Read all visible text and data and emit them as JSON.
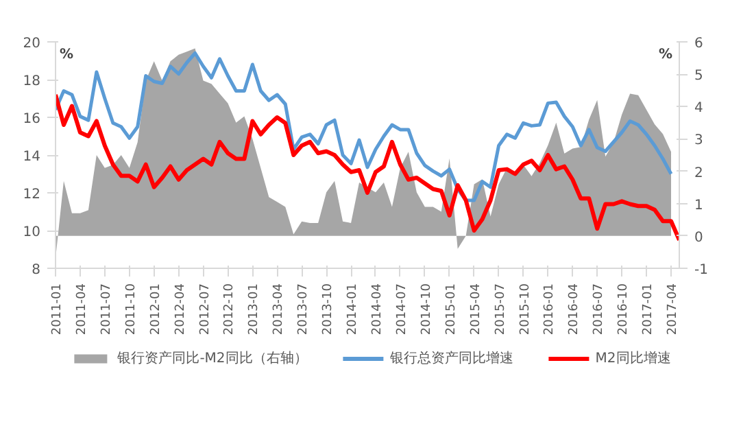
{
  "chart_data": {
    "type": "line",
    "x": [
      "2011-01",
      "2011-02",
      "2011-03",
      "2011-04",
      "2011-05",
      "2011-06",
      "2011-07",
      "2011-08",
      "2011-09",
      "2011-10",
      "2011-11",
      "2011-12",
      "2012-01",
      "2012-02",
      "2012-03",
      "2012-04",
      "2012-05",
      "2012-06",
      "2012-07",
      "2012-08",
      "2012-09",
      "2012-10",
      "2012-11",
      "2012-12",
      "2013-01",
      "2013-02",
      "2013-03",
      "2013-04",
      "2013-05",
      "2013-06",
      "2013-07",
      "2013-08",
      "2013-09",
      "2013-10",
      "2013-11",
      "2013-12",
      "2014-01",
      "2014-02",
      "2014-03",
      "2014-04",
      "2014-05",
      "2014-06",
      "2014-07",
      "2014-08",
      "2014-09",
      "2014-10",
      "2014-11",
      "2014-12",
      "2015-01",
      "2015-02",
      "2015-03",
      "2015-04",
      "2015-05",
      "2015-06",
      "2015-07",
      "2015-08",
      "2015-09",
      "2015-10",
      "2015-11",
      "2015-12",
      "2016-01",
      "2016-02",
      "2016-03",
      "2016-04",
      "2016-05",
      "2016-06",
      "2016-07",
      "2016-08",
      "2016-09",
      "2016-10",
      "2016-11",
      "2016-12",
      "2017-01",
      "2017-02",
      "2017-03",
      "2017-04",
      "2017-05"
    ],
    "series": [
      {
        "name": "银行资产同比-M2同比（右轴）",
        "type": "area",
        "axis": "y2",
        "color": "#a6a6a6",
        "values": [
          -0.7,
          1.7,
          0.7,
          0.7,
          0.8,
          2.5,
          2.1,
          2.2,
          2.5,
          2.1,
          2.9,
          4.8,
          5.4,
          4.8,
          5.4,
          5.6,
          5.7,
          5.8,
          4.8,
          4.7,
          4.4,
          4.1,
          3.5,
          3.7,
          3.0,
          2.1,
          1.2,
          1.05,
          0.9,
          0.05,
          0.45,
          0.4,
          0.4,
          1.35,
          1.7,
          0.45,
          0.4,
          1.65,
          1.5,
          1.35,
          1.65,
          0.9,
          2.1,
          2.6,
          1.35,
          0.9,
          0.9,
          0.75,
          2.4,
          -0.4,
          0.0,
          1.6,
          1.75,
          0.6,
          1.6,
          2.1,
          1.9,
          2.2,
          1.85,
          2.25,
          2.8,
          3.5,
          2.55,
          2.7,
          2.75,
          3.6,
          4.2,
          2.45,
          2.9,
          3.75,
          4.4,
          4.35,
          3.9,
          3.45,
          3.15,
          2.6,
          null
        ]
      },
      {
        "name": "银行总资产同比增速",
        "color": "#5b9bd5",
        "values": [
          16.4,
          17.4,
          17.2,
          16.05,
          15.85,
          18.4,
          17.0,
          15.7,
          15.5,
          14.9,
          15.5,
          18.2,
          17.9,
          17.8,
          18.7,
          18.3,
          18.9,
          19.4,
          18.7,
          18.1,
          19.1,
          18.2,
          17.4,
          17.4,
          18.8,
          17.4,
          16.9,
          17.2,
          16.7,
          14.3,
          14.95,
          15.1,
          14.6,
          15.6,
          15.85,
          14.0,
          13.55,
          14.8,
          13.35,
          14.3,
          15.0,
          15.6,
          15.35,
          15.35,
          14.1,
          13.45,
          13.15,
          12.9,
          13.25,
          12.2,
          11.6,
          11.6,
          12.6,
          12.3,
          14.5,
          15.1,
          14.9,
          15.7,
          15.55,
          15.6,
          16.75,
          16.8,
          16.05,
          15.5,
          14.5,
          15.35,
          14.4,
          14.2,
          14.7,
          15.2,
          15.8,
          15.6,
          15.1,
          14.5,
          13.8,
          13.0,
          null
        ]
      },
      {
        "name": "M2同比增速",
        "color": "#ff0000",
        "values": [
          17.2,
          15.6,
          16.6,
          15.2,
          15.0,
          15.8,
          14.5,
          13.5,
          12.9,
          12.9,
          12.6,
          13.5,
          12.3,
          12.8,
          13.4,
          12.7,
          13.2,
          13.5,
          13.8,
          13.5,
          14.7,
          14.1,
          13.8,
          13.8,
          15.8,
          15.1,
          15.6,
          16.0,
          15.7,
          14.0,
          14.5,
          14.7,
          14.1,
          14.2,
          14.0,
          13.5,
          13.1,
          13.2,
          12.0,
          13.1,
          13.4,
          14.7,
          13.5,
          12.7,
          12.8,
          12.5,
          12.2,
          12.1,
          10.8,
          12.4,
          11.6,
          10.0,
          10.6,
          11.6,
          13.2,
          13.25,
          13.0,
          13.5,
          13.7,
          13.2,
          14.0,
          13.25,
          13.4,
          12.7,
          11.7,
          11.7,
          10.1,
          11.4,
          11.4,
          11.55,
          11.4,
          11.3,
          11.3,
          11.1,
          10.5,
          10.5,
          9.5
        ]
      }
    ],
    "ylabel": "%",
    "y2label": "%",
    "xlim": [
      "2011-01",
      "2017-05"
    ],
    "xticks": [
      "2011-01",
      "2011-04",
      "2011-07",
      "2011-10",
      "2012-01",
      "2012-04",
      "2012-07",
      "2012-10",
      "2013-01",
      "2013-04",
      "2013-07",
      "2013-10",
      "2014-01",
      "2014-04",
      "2014-07",
      "2014-10",
      "2015-01",
      "2015-04",
      "2015-07",
      "2015-10",
      "2016-01",
      "2016-04",
      "2016-07",
      "2016-10",
      "2017-01",
      "2017-04"
    ],
    "ylim": [
      8,
      20
    ],
    "yticks": [
      8,
      10,
      12,
      14,
      16,
      18,
      20
    ],
    "y2lim": [
      -1,
      6
    ],
    "y2ticks": [
      -1,
      0,
      1,
      2,
      3,
      4,
      5,
      6
    ],
    "grid": false,
    "legend": "bottom",
    "marker": "none",
    "line_style": "solid"
  }
}
